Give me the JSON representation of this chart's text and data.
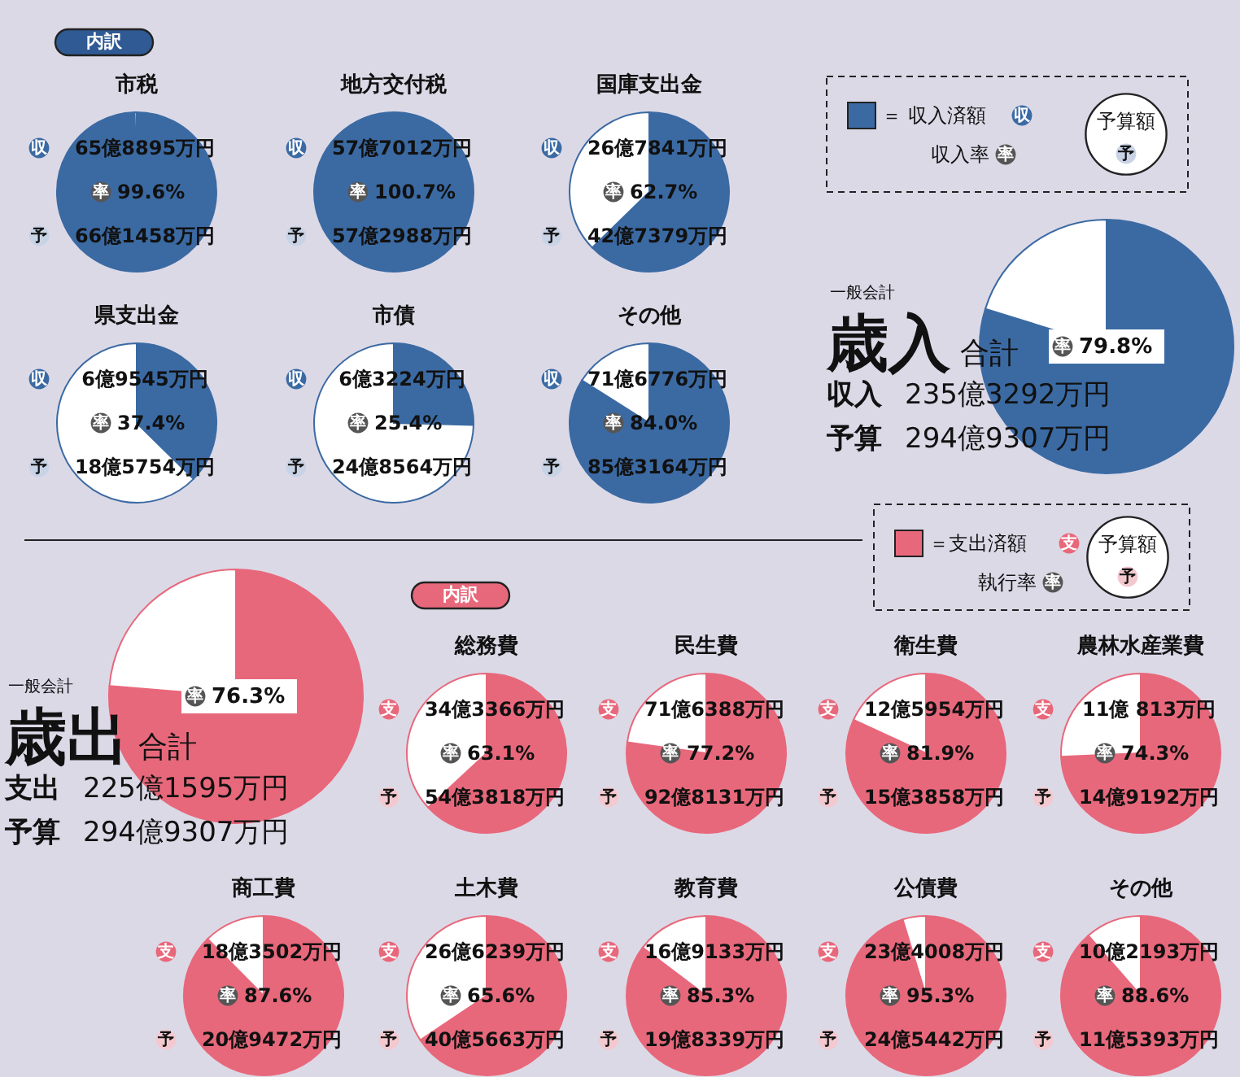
{
  "chart_data": [
    {
      "type": "other",
      "annotations": [
        "内訳"
      ],
      "colors": [
        "#2f5a93"
      ]
    },
    {
      "type": "pie",
      "title": "市税",
      "categories": [
        null,
        null
      ],
      "values": [
        99.6,
        0.4
      ],
      "colors": [
        "#3b6aa3",
        "#ffffff"
      ],
      "annotations": [
        "収",
        "65億8895万円",
        "率",
        "99.6%",
        "予",
        "66億1458万円"
      ]
    },
    {
      "type": "pie",
      "title": "地方交付税",
      "categories": [
        null
      ],
      "values": [
        100.7
      ],
      "colors": [
        "#3b6aa3"
      ],
      "annotations": [
        "収",
        "57億7012万円",
        "率",
        "100.7%",
        "予",
        "57億2988万円"
      ]
    },
    {
      "type": "pie",
      "title": "国庫支出金",
      "categories": [
        null,
        null
      ],
      "values": [
        62.7,
        37.3
      ],
      "colors": [
        "#3b6aa3",
        "#ffffff"
      ],
      "annotations": [
        "収",
        "26億7841万円",
        "率",
        "62.7%",
        "予",
        "42億7379万円"
      ]
    },
    {
      "type": "pie",
      "title": "県支出金",
      "categories": [
        null,
        null
      ],
      "values": [
        37.4,
        62.6
      ],
      "colors": [
        "#3b6aa3",
        "#ffffff"
      ],
      "annotations": [
        "収",
        "6億9545万円",
        "率",
        "37.4%",
        "予",
        "18億5754万円"
      ]
    },
    {
      "type": "pie",
      "title": "市債",
      "categories": [
        null,
        null
      ],
      "values": [
        25.4,
        74.6
      ],
      "colors": [
        "#3b6aa3",
        "#ffffff"
      ],
      "annotations": [
        "収",
        "6億3224万円",
        "率",
        "25.4%",
        "予",
        "24億8564万円"
      ]
    },
    {
      "type": "pie",
      "title": "その他",
      "categories": [
        null,
        null
      ],
      "values": [
        84.0,
        16.0
      ],
      "colors": [
        "#3b6aa3",
        "#ffffff"
      ],
      "annotations": [
        "収",
        "71億6776万円",
        "率",
        "84.0%",
        "予",
        "85億3164万円"
      ]
    },
    {
      "type": "other",
      "annotations": [
        "＝ 収入済額",
        "収",
        "収入率",
        "率",
        "予算額",
        "予"
      ],
      "colors": [
        "#3b6aa3"
      ]
    },
    {
      "type": "pie",
      "title": "歳入",
      "categories": [
        null,
        null
      ],
      "values": [
        79.8,
        20.2
      ],
      "colors": [
        "#3b6aa3",
        "#ffffff"
      ],
      "annotations": [
        "一般会計",
        "合計",
        "率",
        "79.8%",
        "収入",
        "235億3292万円",
        "予算",
        "294億9307万円"
      ]
    },
    {
      "type": "other",
      "annotations": [
        "＝支出済額",
        "支",
        "執行率",
        "率",
        "予算額",
        "予"
      ],
      "colors": [
        "#e8687b"
      ]
    },
    {
      "type": "pie",
      "title": "歳出",
      "categories": [
        null,
        null
      ],
      "values": [
        76.3,
        23.7
      ],
      "colors": [
        "#e8687b",
        "#ffffff"
      ],
      "annotations": [
        "一般会計",
        "合計",
        "率",
        "76.3%",
        "支出",
        "225億1595万円",
        "予算",
        "294億9307万円"
      ]
    },
    {
      "type": "other",
      "annotations": [
        "内訳"
      ],
      "colors": [
        "#e8687b"
      ]
    },
    {
      "type": "pie",
      "title": "総務費",
      "categories": [
        null,
        null
      ],
      "values": [
        63.1,
        36.9
      ],
      "colors": [
        "#e8687b",
        "#ffffff"
      ],
      "annotations": [
        "支",
        "34億3366万円",
        "率",
        "63.1%",
        "予",
        "54億3818万円"
      ]
    },
    {
      "type": "pie",
      "title": "民生費",
      "categories": [
        null,
        null
      ],
      "values": [
        77.2,
        22.8
      ],
      "colors": [
        "#e8687b",
        "#ffffff"
      ],
      "annotations": [
        "支",
        "71億6388万円",
        "率",
        "77.2%",
        "予",
        "92億8131万円"
      ]
    },
    {
      "type": "pie",
      "title": "衛生費",
      "categories": [
        null,
        null
      ],
      "values": [
        81.9,
        18.1
      ],
      "colors": [
        "#e8687b",
        "#ffffff"
      ],
      "annotations": [
        "支",
        "12億5954万円",
        "率",
        "81.9%",
        "予",
        "15億3858万円"
      ]
    },
    {
      "type": "pie",
      "title": "農林水産業費",
      "categories": [
        null,
        null
      ],
      "values": [
        74.3,
        25.7
      ],
      "colors": [
        "#e8687b",
        "#ffffff"
      ],
      "annotations": [
        "支",
        "11億 813万円",
        "率",
        "74.3%",
        "予",
        "14億9192万円"
      ]
    },
    {
      "type": "pie",
      "title": "商工費",
      "categories": [
        null,
        null
      ],
      "values": [
        87.6,
        12.4
      ],
      "colors": [
        "#e8687b",
        "#ffffff"
      ],
      "annotations": [
        "支",
        "18億3502万円",
        "率",
        "87.6%",
        "予",
        "20億9472万円"
      ]
    },
    {
      "type": "pie",
      "title": "土木費",
      "categories": [
        null,
        null
      ],
      "values": [
        65.6,
        34.4
      ],
      "colors": [
        "#e8687b",
        "#ffffff"
      ],
      "annotations": [
        "支",
        "26億6239万円",
        "率",
        "65.6%",
        "予",
        "40億5663万円"
      ]
    },
    {
      "type": "pie",
      "title": "教育費",
      "categories": [
        null,
        null
      ],
      "values": [
        85.3,
        14.7
      ],
      "colors": [
        "#e8687b",
        "#ffffff"
      ],
      "annotations": [
        "支",
        "16億9133万円",
        "率",
        "85.3%",
        "予",
        "19億8339万円"
      ]
    },
    {
      "type": "pie",
      "title": "公債費",
      "categories": [
        null,
        null
      ],
      "values": [
        95.3,
        4.7
      ],
      "colors": [
        "#e8687b",
        "#ffffff"
      ],
      "annotations": [
        "支",
        "23億4008万円",
        "率",
        "95.3%",
        "予",
        "24億5442万円"
      ]
    },
    {
      "type": "pie",
      "title": "その他",
      "categories": [
        null,
        null
      ],
      "values": [
        88.6,
        11.4
      ],
      "colors": [
        "#e8687b",
        "#ffffff"
      ],
      "annotations": [
        "支",
        "10億2193万円",
        "率",
        "88.6%",
        "予",
        "11億5393万円"
      ]
    }
  ]
}
